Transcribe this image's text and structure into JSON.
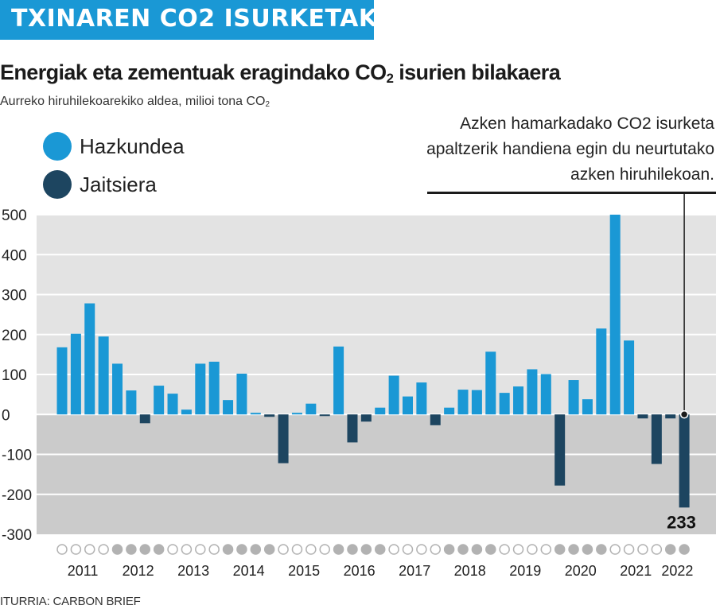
{
  "header": {
    "banner": "TXINAREN CO2 ISURKETAK"
  },
  "title": {
    "main": "Energiak eta zementuak eragindako CO",
    "main_sub": "2",
    "main_tail": " isurien bilakaera"
  },
  "subtitle": {
    "main": "Aurreko hiruhilekoarekiko aldea, milioi tona CO",
    "sub": "2"
  },
  "legend": [
    {
      "label": "Hazkundea",
      "color": "#1a98d5"
    },
    {
      "label": "Jaitsiera",
      "color": "#1d4560"
    }
  ],
  "annotation": {
    "text": "Azken hamarkadako CO2 isurketa apaltzerik handiena egin du neurtutako azken hiruhilekoan."
  },
  "source": "ITURRIA: CARBON BRIEF",
  "colors": {
    "increase": "#1a98d5",
    "decrease": "#1d4560",
    "positive_bg": "#e3e3e3",
    "negative_bg": "#cbcbcb",
    "dot_light": "#ffffff",
    "dot_dark": "#b2b2b2"
  },
  "chart_data": {
    "type": "bar",
    "ylim": [
      -300,
      500
    ],
    "yticks": [
      500,
      400,
      300,
      200,
      100,
      0,
      -100,
      -200,
      -300
    ],
    "years": [
      "2011",
      "2012",
      "2013",
      "2014",
      "2015",
      "2016",
      "2017",
      "2018",
      "2019",
      "2020",
      "2021",
      "2022"
    ],
    "quarters_per_year": 4,
    "values": [
      168,
      202,
      278,
      195,
      127,
      60,
      -22,
      72,
      52,
      12,
      127,
      132,
      36,
      102,
      4,
      -6,
      -122,
      4,
      27,
      -4,
      170,
      -70,
      -18,
      17,
      97,
      45,
      80,
      -27,
      17,
      62,
      61,
      157,
      54,
      70,
      113,
      101,
      -178,
      86,
      38,
      215,
      500,
      185,
      -10,
      -124,
      -10,
      -233
    ],
    "data_labels": [
      {
        "index": 45,
        "text": "233"
      }
    ],
    "grid": true,
    "legend": "top-left"
  }
}
